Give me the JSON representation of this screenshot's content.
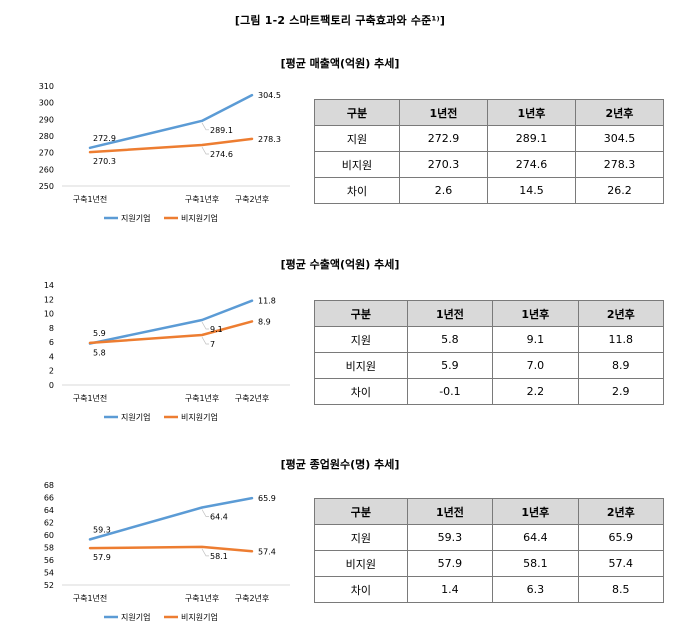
{
  "figure_title": "[그림 1-2 스마트팩토리 구축효과와 수준¹⁾]",
  "colors": {
    "support": "#5b9bd5",
    "nonsupport": "#ed7d31",
    "axis": "#d9d9d9",
    "table_header": "#d9d9d9"
  },
  "chart_data": [
    {
      "type": "line",
      "title": "[평균 매출액(억원) 추세]",
      "categories": [
        "구축1년전",
        "구축1년후",
        "구축2년후"
      ],
      "ylim": [
        250,
        310
      ],
      "yticks": [
        "250",
        "260",
        "270",
        "280",
        "290",
        "300",
        "310"
      ],
      "series": [
        {
          "name": "지원기업",
          "values": [
            272.9,
            289.1,
            304.5
          ],
          "labels": [
            "272.9",
            "289.1",
            "304.5"
          ]
        },
        {
          "name": "비지원기업",
          "values": [
            270.3,
            274.6,
            278.3
          ],
          "labels": [
            "270.3",
            "274.6",
            "278.3"
          ]
        }
      ]
    },
    {
      "type": "line",
      "title": "[평균 수출액(억원) 추세]",
      "categories": [
        "구축1년전",
        "구축1년후",
        "구축2년후"
      ],
      "ylim": [
        0,
        14
      ],
      "yticks": [
        "0",
        "2",
        "4",
        "6",
        "8",
        "10",
        "12",
        "14"
      ],
      "series": [
        {
          "name": "지원기업",
          "values": [
            5.8,
            9.1,
            11.8
          ],
          "labels": [
            "5.8",
            "9.1",
            "11.8"
          ]
        },
        {
          "name": "비지원기업",
          "values": [
            5.9,
            7,
            8.9
          ],
          "labels": [
            "5.9",
            "7",
            "8.9"
          ]
        }
      ]
    },
    {
      "type": "line",
      "title": "[평균 종업원수(명) 추세]",
      "categories": [
        "구축1년전",
        "구축1년후",
        "구축2년후"
      ],
      "ylim": [
        52,
        68
      ],
      "yticks": [
        "52",
        "54",
        "56",
        "58",
        "60",
        "62",
        "64",
        "66",
        "68"
      ],
      "series": [
        {
          "name": "지원기업",
          "values": [
            59.3,
            64.4,
            65.9
          ],
          "labels": [
            "59.3",
            "64.4",
            "65.9"
          ]
        },
        {
          "name": "비지원기업",
          "values": [
            57.9,
            58.1,
            57.4
          ],
          "labels": [
            "57.9",
            "58.1",
            "57.4"
          ]
        }
      ]
    }
  ],
  "tables": [
    {
      "header": [
        "구분",
        "1년전",
        "1년후",
        "2년후"
      ],
      "rows": [
        [
          "지원",
          "272.9",
          "289.1",
          "304.5"
        ],
        [
          "비지원",
          "270.3",
          "274.6",
          "278.3"
        ],
        [
          "차이",
          "2.6",
          "14.5",
          "26.2"
        ]
      ]
    },
    {
      "header": [
        "구분",
        "1년전",
        "1년후",
        "2년후"
      ],
      "rows": [
        [
          "지원",
          "5.8",
          "9.1",
          "11.8"
        ],
        [
          "비지원",
          "5.9",
          "7.0",
          "8.9"
        ],
        [
          "차이",
          "-0.1",
          "2.2",
          "2.9"
        ]
      ]
    },
    {
      "header": [
        "구분",
        "1년전",
        "1년후",
        "2년후"
      ],
      "rows": [
        [
          "지원",
          "59.3",
          "64.4",
          "65.9"
        ],
        [
          "비지원",
          "57.9",
          "58.1",
          "57.4"
        ],
        [
          "차이",
          "1.4",
          "6.3",
          "8.5"
        ]
      ]
    }
  ]
}
